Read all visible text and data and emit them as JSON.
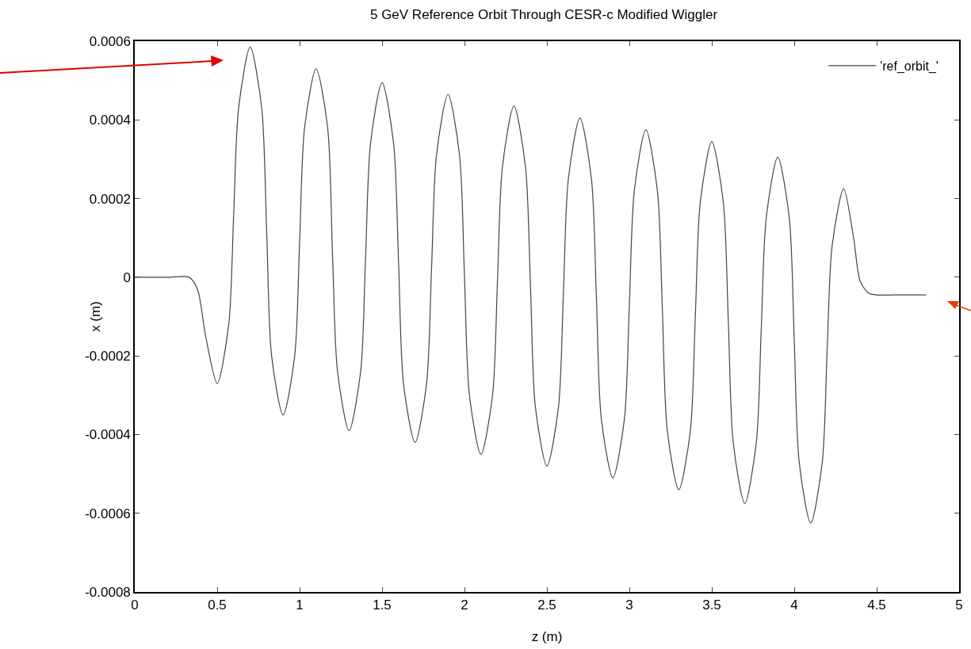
{
  "chart_data": {
    "type": "line",
    "title": "5 GeV Reference Orbit Through CESR-c Modified Wiggler",
    "xlabel": "z (m)",
    "ylabel": "x (m)",
    "xlim": [
      0,
      5
    ],
    "xticks": [
      0,
      0.5,
      1,
      1.5,
      2,
      2.5,
      3,
      3.5,
      4,
      4.5,
      5
    ],
    "ylim": [
      -0.0008,
      0.0006
    ],
    "yticks": [
      -0.0008,
      -0.0006,
      -0.0004,
      -0.0002,
      0,
      0.0002,
      0.0004,
      0.0006
    ],
    "grid": false,
    "legend": "top right",
    "marker": "none",
    "line_style": "solid",
    "series": [
      {
        "name": "'ref_orbit_'",
        "color": "#444444",
        "x": [
          0,
          0.2,
          0.33,
          0.38,
          0.43,
          0.5,
          0.57,
          0.6,
          0.63,
          0.7,
          0.77,
          0.8,
          0.83,
          0.9,
          0.97,
          1.0,
          1.03,
          1.1,
          1.17,
          1.2,
          1.23,
          1.3,
          1.37,
          1.4,
          1.43,
          1.5,
          1.57,
          1.6,
          1.63,
          1.7,
          1.77,
          1.8,
          1.83,
          1.9,
          1.97,
          2.0,
          2.03,
          2.1,
          2.17,
          2.2,
          2.23,
          2.3,
          2.37,
          2.4,
          2.43,
          2.5,
          2.57,
          2.6,
          2.63,
          2.7,
          2.77,
          2.8,
          2.83,
          2.9,
          2.97,
          3.0,
          3.03,
          3.1,
          3.17,
          3.2,
          3.23,
          3.3,
          3.37,
          3.4,
          3.43,
          3.5,
          3.57,
          3.6,
          3.63,
          3.7,
          3.77,
          3.8,
          3.83,
          3.9,
          3.97,
          4.0,
          4.03,
          4.1,
          4.17,
          4.2,
          4.23,
          4.3,
          4.36,
          4.4,
          4.45,
          4.5,
          4.6,
          4.8
        ],
        "values": [
          0,
          0,
          0,
          -3e-05,
          -0.00015,
          -0.00027,
          -0.00012,
          0.00016,
          0.00043,
          0.000585,
          0.00043,
          0.00012,
          -0.0002,
          -0.00035,
          -0.0002,
          9e-05,
          0.00038,
          0.00053,
          0.00038,
          5e-05,
          -0.00024,
          -0.00039,
          -0.00024,
          5e-05,
          0.00034,
          0.000495,
          0.00034,
          4e-05,
          -0.00027,
          -0.00042,
          -0.00027,
          2e-05,
          0.00031,
          0.000465,
          0.00031,
          0.0,
          -0.0003,
          -0.00045,
          -0.0003,
          -1e-05,
          0.00028,
          0.000435,
          0.00028,
          -2e-05,
          -0.00033,
          -0.00048,
          -0.00033,
          -4e-05,
          0.00025,
          0.000405,
          0.00025,
          -5e-05,
          -0.00036,
          -0.00051,
          -0.00036,
          -7e-05,
          0.00022,
          0.000375,
          0.00022,
          -8e-05,
          -0.00039,
          -0.00054,
          -0.00039,
          -0.0001,
          0.00019,
          0.000345,
          0.00019,
          -0.00011,
          -0.00042,
          -0.000575,
          -0.00042,
          -0.00013,
          0.00015,
          0.000305,
          0.00015,
          -0.00016,
          -0.00047,
          -0.000625,
          -0.00047,
          -0.00018,
          8e-05,
          0.000225,
          0.0001,
          -1e-05,
          -4e-05,
          -4.5e-05,
          -4.5e-05,
          -4.5e-05
        ]
      }
    ]
  }
}
